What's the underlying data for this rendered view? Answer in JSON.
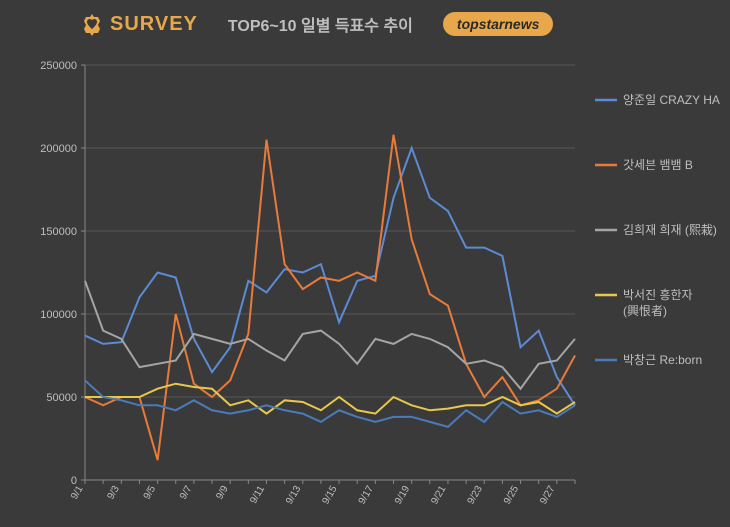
{
  "header": {
    "survey_text": "SURVEY",
    "title": "TOP6~10 일별 득표수 추이",
    "topstar_text": "topstarnews"
  },
  "chart": {
    "type": "line",
    "background_color": "#3a3a3a",
    "grid_color": "#555555",
    "axis_color": "#888888",
    "text_color": "#bfbfbf",
    "ylim": [
      0,
      250000
    ],
    "ytick_step": 50000,
    "ylabels": [
      "0",
      "50000",
      "100000",
      "150000",
      "200000",
      "250000"
    ],
    "xlabels": [
      "9/1",
      "9/3",
      "9/5",
      "9/7",
      "9/9",
      "9/11",
      "9/13",
      "9/15",
      "9/17",
      "9/19",
      "9/21",
      "9/23",
      "9/25",
      "9/27"
    ],
    "x_count": 28,
    "line_width": 2,
    "series": [
      {
        "name": "양준일 CRAZY HAZY",
        "color": "#5b8bd4",
        "data": [
          87000,
          82000,
          83000,
          110000,
          125000,
          122000,
          85000,
          65000,
          80000,
          120000,
          113000,
          127000,
          125000,
          130000,
          95000,
          120000,
          123000,
          170000,
          200000,
          170000,
          162000,
          140000,
          140000,
          135000,
          80000,
          90000,
          62000,
          45000
        ]
      },
      {
        "name": "갓세븐 뱀뱀 B",
        "color": "#e87a3a",
        "data": [
          50000,
          45000,
          50000,
          50000,
          12000,
          100000,
          58000,
          50000,
          60000,
          88000,
          205000,
          130000,
          115000,
          122000,
          120000,
          125000,
          120000,
          208000,
          145000,
          112000,
          105000,
          70000,
          50000,
          62000,
          45000,
          48000,
          55000,
          75000
        ]
      },
      {
        "name": "김희재 희재 (熙栽)",
        "color": "#a5a5a5",
        "data": [
          120000,
          90000,
          85000,
          68000,
          70000,
          72000,
          88000,
          85000,
          82000,
          85000,
          78000,
          72000,
          88000,
          90000,
          82000,
          70000,
          85000,
          82000,
          88000,
          85000,
          80000,
          70000,
          72000,
          68000,
          55000,
          70000,
          72000,
          85000
        ]
      },
      {
        "name": "박서진 흥한자 (興恨者)",
        "color": "#e8c74a",
        "data": [
          50000,
          50000,
          50000,
          50000,
          55000,
          58000,
          56000,
          55000,
          45000,
          48000,
          40000,
          48000,
          47000,
          42000,
          50000,
          42000,
          40000,
          50000,
          45000,
          42000,
          43000,
          45000,
          45000,
          50000,
          45000,
          47000,
          40000,
          47000
        ]
      },
      {
        "name": "박창근 Re:born",
        "color": "#4a7bb8",
        "data": [
          60000,
          50000,
          48000,
          45000,
          45000,
          42000,
          48000,
          42000,
          40000,
          42000,
          45000,
          42000,
          40000,
          35000,
          42000,
          38000,
          35000,
          38000,
          38000,
          35000,
          32000,
          42000,
          35000,
          47000,
          40000,
          42000,
          38000,
          45000
        ]
      }
    ],
    "legend_lines": [
      {
        "series_idx": 0,
        "lines": [
          "양준일 CRAZY HAZY"
        ]
      },
      {
        "series_idx": 1,
        "lines": [
          "갓세븐 뱀뱀 B"
        ]
      },
      {
        "series_idx": 2,
        "lines": [
          "김희재 희재 (熙栽)"
        ]
      },
      {
        "series_idx": 3,
        "lines": [
          "박서진 흥한자",
          "(興恨者)"
        ]
      },
      {
        "series_idx": 4,
        "lines": [
          "박창근 Re:born"
        ]
      }
    ]
  }
}
